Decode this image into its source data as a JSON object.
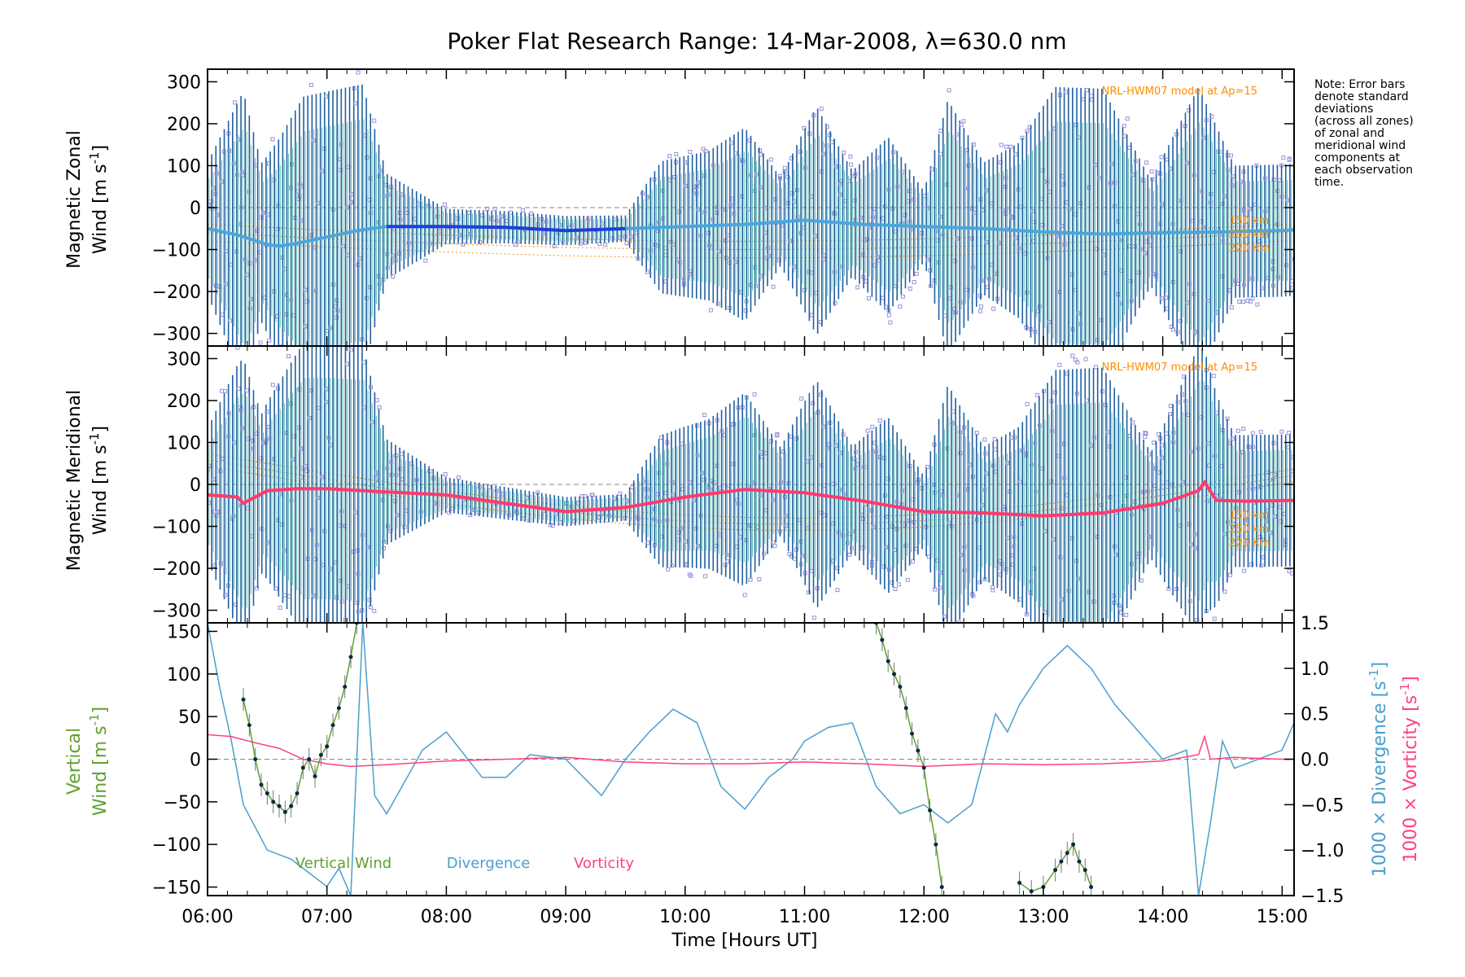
{
  "figure": {
    "title": "Poker Flat Research Range: 14-Mar-2008, λ=630.0 nm",
    "note_lines": [
      "Note: Error bars",
      "denote standard",
      "deviations",
      "(across all zones)",
      "of zonal and",
      "meridional wind",
      "components at",
      "each observation",
      "time."
    ],
    "model_label": "NRL-HWM07 model at Ap=15",
    "height_labels": [
      "150 km",
      "250 km",
      "220 Km"
    ],
    "xlabel": "Time [Hours UT]",
    "colors": {
      "zonal": "#4aa6dc",
      "zonal_dark": "#1e3fd8",
      "meridional": "#ff3a6e",
      "vertical": "#60a030",
      "divergence": "#4a9fcc",
      "vorticity": "#ff4080",
      "model": "#ff8c00",
      "scatter": "#9a90dd",
      "errorbar": "#2060a0",
      "zero": "#888888"
    }
  },
  "chart_data": [
    {
      "type": "line",
      "panel": "zonal",
      "ylabel_line1": "Magnetic Zonal",
      "ylabel_line2": "Wind [m s",
      "ylabel_sup": "-1",
      "ylabel_end": "]",
      "xlim": [
        6.0,
        15.1
      ],
      "ylim": [
        -330,
        330
      ],
      "yticks": [
        -300,
        -200,
        -100,
        0,
        100,
        200,
        300
      ],
      "xticks_labels": [
        "06:00",
        "07:00",
        "08:00",
        "09:00",
        "10:00",
        "11:00",
        "12:00",
        "13:00",
        "14:00",
        "15:00"
      ],
      "series": [
        {
          "name": "Zonal",
          "x": [
            6.0,
            6.25,
            6.5,
            6.6,
            6.75,
            7.0,
            7.25,
            7.5,
            8.0,
            8.5,
            9.0,
            9.5,
            10.0,
            10.5,
            11.0,
            11.5,
            12.0,
            12.5,
            13.0,
            13.5,
            14.0,
            14.5,
            15.0,
            15.1
          ],
          "y": [
            -50,
            -65,
            -88,
            -92,
            -85,
            -70,
            -55,
            -45,
            -45,
            -47,
            -55,
            -50,
            -45,
            -40,
            -30,
            -40,
            -45,
            -50,
            -58,
            -63,
            -60,
            -58,
            -55,
            -53
          ]
        }
      ]
    },
    {
      "type": "line",
      "panel": "meridional",
      "ylabel_line1": "Magnetic Meridional",
      "ylabel_line2": "Wind [m s",
      "ylabel_sup": "-1",
      "ylabel_end": "]",
      "xlim": [
        6.0,
        15.1
      ],
      "ylim": [
        -330,
        330
      ],
      "yticks": [
        -300,
        -200,
        -100,
        0,
        100,
        200,
        300
      ],
      "series": [
        {
          "name": "Meridional",
          "x": [
            6.0,
            6.25,
            6.3,
            6.5,
            6.75,
            7.0,
            7.5,
            8.0,
            8.5,
            9.0,
            9.5,
            10.0,
            10.5,
            11.0,
            11.5,
            12.0,
            12.5,
            13.0,
            13.5,
            14.0,
            14.3,
            14.35,
            14.45,
            14.7,
            15.1
          ],
          "y": [
            -25,
            -30,
            -45,
            -15,
            -10,
            -10,
            -18,
            -25,
            -45,
            -65,
            -55,
            -30,
            -12,
            -20,
            -40,
            -65,
            -68,
            -75,
            -68,
            -45,
            -15,
            5,
            -38,
            -40,
            -38
          ]
        }
      ]
    },
    {
      "type": "line",
      "panel": "vertical",
      "ylabel_line1": "Vertical",
      "ylabel_line2": "Wind [m s",
      "ylabel_sup": "-1",
      "ylabel_end": "]",
      "xlim": [
        6.0,
        15.1
      ],
      "ylim": [
        -160,
        160
      ],
      "yticks": [
        -150,
        -100,
        -50,
        0,
        50,
        100,
        150
      ],
      "y2lim": [
        -1.5,
        1.5
      ],
      "y2ticks": [
        -1.5,
        -1.0,
        -0.5,
        0.0,
        0.5,
        1.0,
        1.5
      ],
      "y2ticks_labels": [
        "-1.5",
        "-1.0",
        "-0.5",
        "0.0",
        "0.5",
        "1.0",
        "1.5"
      ],
      "y2label_div": "1000 × Divergence [s",
      "y2label_vor": "1000 × Vorticity [s",
      "y2label_sup": "-1",
      "y2label_end": "]",
      "legend": [
        "Vertical Wind",
        "Divergence",
        "Vorticity"
      ],
      "series": [
        {
          "name": "Vertical Wind",
          "x": [
            6.3,
            6.35,
            6.4,
            6.45,
            6.5,
            6.55,
            6.6,
            6.65,
            6.7,
            6.75,
            6.8,
            6.85,
            6.9,
            6.95,
            7.0,
            7.05,
            7.1,
            7.15,
            7.2,
            7.25,
            11.6,
            11.65,
            11.7,
            11.75,
            11.8,
            11.85,
            11.9,
            11.95,
            12.0,
            12.05,
            12.1,
            12.15,
            12.8,
            12.9,
            13.0,
            13.1,
            13.15,
            13.2,
            13.25,
            13.3,
            13.35,
            13.4
          ],
          "y": [
            70,
            40,
            0,
            -30,
            -40,
            -50,
            -55,
            -62,
            -55,
            -40,
            -10,
            0,
            -20,
            5,
            15,
            40,
            60,
            85,
            120,
            160,
            160,
            140,
            115,
            100,
            85,
            60,
            30,
            10,
            -10,
            -60,
            -100,
            -150,
            -145,
            -155,
            -150,
            -130,
            -120,
            -110,
            -100,
            -120,
            -130,
            -150
          ]
        },
        {
          "name": "Divergence",
          "x": [
            6.0,
            6.1,
            6.2,
            6.3,
            6.5,
            6.7,
            6.9,
            7.0,
            7.1,
            7.2,
            7.3,
            7.4,
            7.5,
            7.8,
            8.0,
            8.3,
            8.5,
            8.7,
            9.0,
            9.3,
            9.5,
            9.7,
            9.9,
            10.1,
            10.3,
            10.5,
            10.7,
            10.9,
            11.0,
            11.2,
            11.4,
            11.6,
            11.8,
            12.0,
            12.2,
            12.4,
            12.6,
            12.7,
            12.8,
            13.0,
            13.2,
            13.4,
            13.6,
            13.8,
            14.0,
            14.2,
            14.3,
            14.4,
            14.5,
            14.6,
            14.8,
            15.0,
            15.1
          ],
          "y": [
            1.5,
            0.8,
            0.2,
            -0.5,
            -1.0,
            -1.1,
            -1.3,
            -1.4,
            -1.2,
            -1.5,
            1.5,
            -0.4,
            -0.6,
            0.1,
            0.3,
            -0.2,
            -0.2,
            0.05,
            0.0,
            -0.4,
            0.0,
            0.3,
            0.55,
            0.4,
            -0.3,
            -0.55,
            -0.2,
            0.0,
            0.2,
            0.35,
            0.4,
            -0.3,
            -0.6,
            -0.5,
            -0.7,
            -0.5,
            0.5,
            0.3,
            0.6,
            1.0,
            1.25,
            1.0,
            0.6,
            0.3,
            0.0,
            0.1,
            -1.5,
            -0.7,
            0.2,
            -0.1,
            0.0,
            0.1,
            0.4
          ]
        },
        {
          "name": "Vorticity",
          "x": [
            6.0,
            6.2,
            6.4,
            6.6,
            6.8,
            7.0,
            7.2,
            7.5,
            8.0,
            8.5,
            9.0,
            9.5,
            10.0,
            10.5,
            11.0,
            11.5,
            12.0,
            12.5,
            13.0,
            13.5,
            14.0,
            14.3,
            14.35,
            14.4,
            14.6,
            15.0,
            15.1
          ],
          "y": [
            0.27,
            0.25,
            0.18,
            0.12,
            0.0,
            -0.05,
            -0.08,
            -0.06,
            -0.02,
            0.0,
            0.02,
            -0.03,
            -0.05,
            -0.05,
            -0.03,
            -0.05,
            -0.08,
            -0.05,
            -0.06,
            -0.05,
            -0.02,
            0.05,
            0.25,
            0.0,
            0.02,
            0.0,
            0.0
          ]
        }
      ]
    }
  ]
}
